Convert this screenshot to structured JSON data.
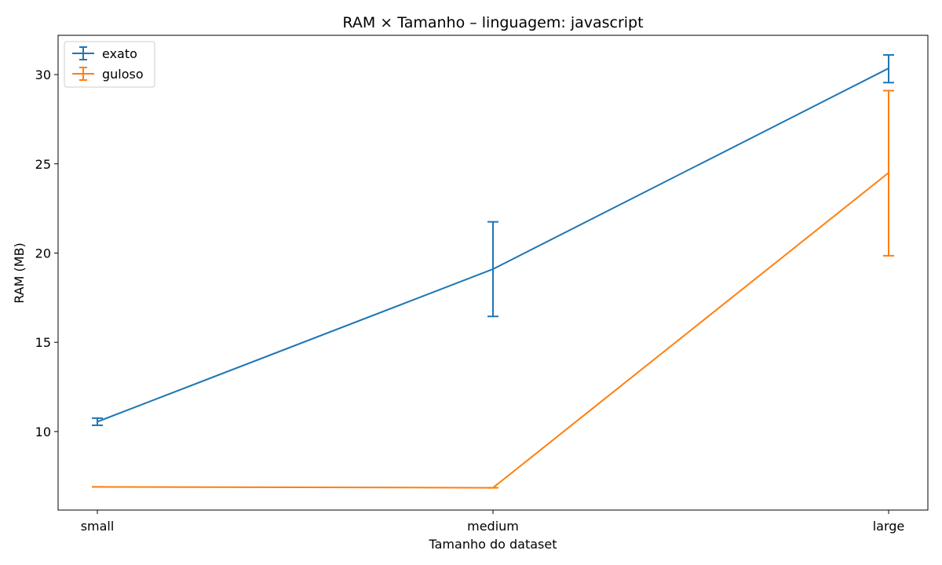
{
  "chart_data": {
    "type": "line",
    "title": "RAM × Tamanho – linguagem: javascript",
    "xlabel": "Tamanho do dataset",
    "ylabel": "RAM (MB)",
    "categories": [
      "small",
      "medium",
      "large"
    ],
    "ylim": [
      5.6,
      32.2
    ],
    "yticks": [
      10,
      15,
      20,
      25,
      30
    ],
    "grid": false,
    "legend_position": "top-left",
    "series": [
      {
        "name": "exato",
        "color": "#1f77b4",
        "values": [
          10.55,
          19.1,
          30.35
        ],
        "error_low": [
          10.35,
          16.45,
          29.55
        ],
        "error_high": [
          10.75,
          21.75,
          31.1
        ]
      },
      {
        "name": "guloso",
        "color": "#ff7f0e",
        "values": [
          6.9,
          6.85,
          24.5
        ],
        "error_low": [
          6.9,
          6.85,
          19.85
        ],
        "error_high": [
          6.9,
          6.85,
          29.1
        ]
      }
    ]
  }
}
